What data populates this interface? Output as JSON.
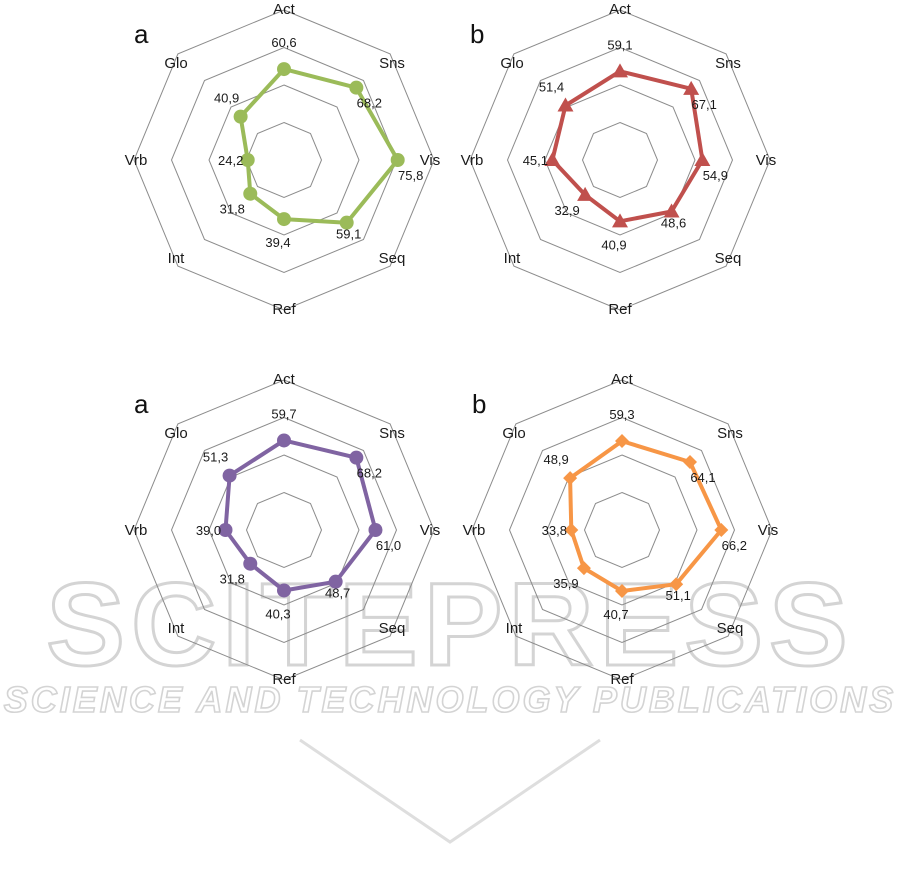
{
  "watermark": {
    "line1": "SCITEPRESS",
    "line2": "SCIENCE AND TECHNOLOGY PUBLICATIONS"
  },
  "chart_data": [
    {
      "type": "radar",
      "panel": "a",
      "axes": [
        "Act",
        "Sns",
        "Vis",
        "Seq",
        "Ref",
        "Int",
        "Vrb",
        "Glo"
      ],
      "labels": [
        "60,6",
        "68,2",
        "75,8",
        "59,1",
        "39,4",
        "31,8",
        "24,2",
        "40,9"
      ],
      "values": [
        60.6,
        68.2,
        75.8,
        59.1,
        39.4,
        31.8,
        24.2,
        40.9
      ],
      "marker": "circle",
      "color": "#9bbb59",
      "range": [
        0,
        100
      ],
      "rings": 4
    },
    {
      "type": "radar",
      "panel": "b",
      "axes": [
        "Act",
        "Sns",
        "Vis",
        "Seq",
        "Ref",
        "Int",
        "Vrb",
        "Glo"
      ],
      "labels": [
        "59,1",
        "67,1",
        "54,9",
        "48,6",
        "40,9",
        "32,9",
        "45,1",
        "51,4"
      ],
      "values": [
        59.1,
        67.1,
        54.9,
        48.6,
        40.9,
        32.9,
        45.1,
        51.4
      ],
      "marker": "triangle",
      "color": "#c0504d",
      "range": [
        0,
        100
      ],
      "rings": 4
    },
    {
      "type": "radar",
      "panel": "a",
      "axes": [
        "Act",
        "Sns",
        "Vis",
        "Seq",
        "Ref",
        "Int",
        "Vrb",
        "Glo"
      ],
      "labels": [
        "59,7",
        "68,2",
        "61,0",
        "48,7",
        "40,3",
        "31,8",
        "39,0",
        "51,3"
      ],
      "values": [
        59.7,
        68.2,
        61.0,
        48.7,
        40.3,
        31.8,
        39.0,
        51.3
      ],
      "marker": "circle",
      "color": "#8064a2",
      "range": [
        0,
        100
      ],
      "rings": 4
    },
    {
      "type": "radar",
      "panel": "b",
      "axes": [
        "Act",
        "Sns",
        "Vis",
        "Seq",
        "Ref",
        "Int",
        "Vrb",
        "Glo"
      ],
      "labels": [
        "59,3",
        "64,1",
        "66,2",
        "51,1",
        "40,7",
        "35,9",
        "33,8",
        "48,9"
      ],
      "values": [
        59.3,
        64.1,
        66.2,
        51.1,
        40.7,
        35.9,
        33.8,
        48.9
      ],
      "marker": "diamond",
      "color": "#f79646",
      "range": [
        0,
        100
      ],
      "rings": 4
    }
  ]
}
